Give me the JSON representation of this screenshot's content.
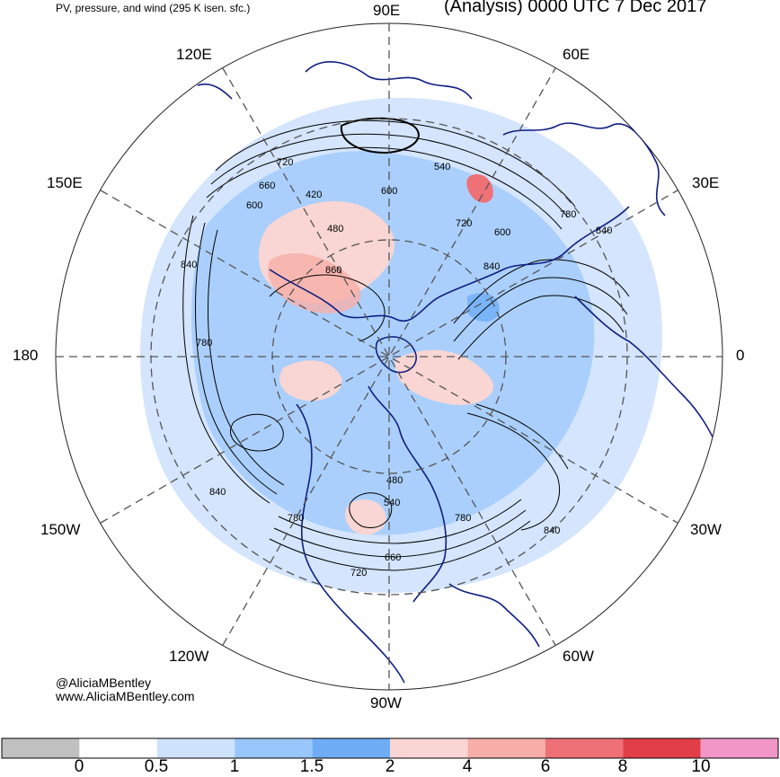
{
  "header": {
    "product": "PV, pressure, and wind (295 K isen. sfc.)",
    "title": "(Analysis) 0000 UTC 7 Dec 2017"
  },
  "longitude_labels": {
    "top": "90E",
    "top_left": "120E",
    "top_right": "60E",
    "upper_left": "150E",
    "upper_right": "30E",
    "left": "180",
    "right": "0",
    "lower_left": "150W",
    "lower_right": "30W",
    "bottom_left": "120W",
    "bottom_right": "60W",
    "bottom": "90W"
  },
  "contour_labels": [
    "720",
    "660",
    "600",
    "420",
    "480",
    "840",
    "860",
    "780",
    "600",
    "720",
    "600",
    "780",
    "840",
    "540",
    "480",
    "540",
    "780",
    "840",
    "720",
    "660",
    "780",
    "840",
    "840"
  ],
  "credits": {
    "twitter": "@AliciaMBentley",
    "website": "www.AliciaMBentley.com"
  },
  "colorbar": {
    "ticks": [
      "0",
      "0.5",
      "1",
      "1.5",
      "2",
      "4",
      "6",
      "8",
      "10"
    ],
    "colors": [
      "#c0c0c0",
      "#ffffff",
      "#cfe2fd",
      "#99c6fb",
      "#6eadf6",
      "#f9d6d3",
      "#f7aea9",
      "#ee7177",
      "#e23e48",
      "#f296c8"
    ]
  },
  "colors": {
    "coastline": "#101f82",
    "contour": "#000000",
    "grid": "#555555"
  }
}
